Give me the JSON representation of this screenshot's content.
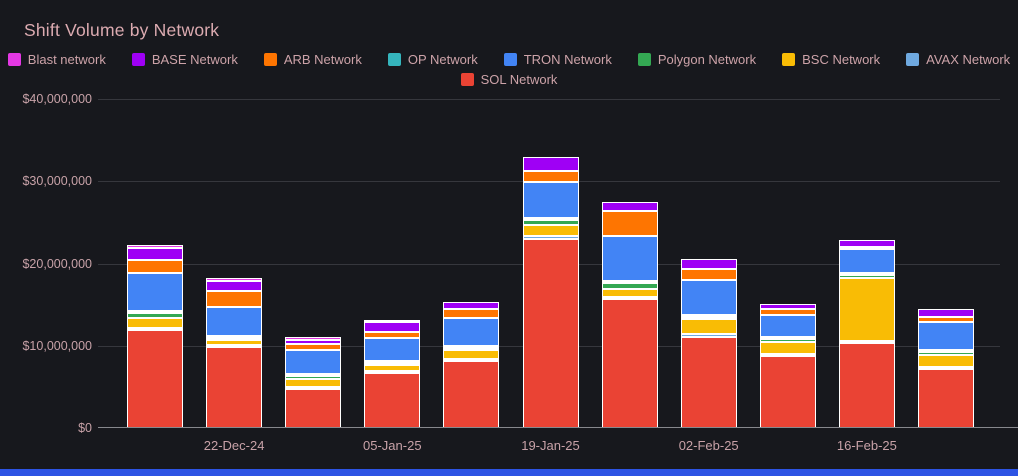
{
  "title": "Shift Volume by Network",
  "colors": {
    "background": "#17181d",
    "title_text": "#dcabb1",
    "legend_text": "#cda3a9",
    "axis_text": "#c8a2a8",
    "grid_line": "#36373d",
    "axis_line": "#87888d",
    "segment_border": "#ffffff",
    "bottom_strip": "#2d54e4"
  },
  "legend": {
    "rows": [
      [
        {
          "label": "Blast network",
          "color": "#e438e4"
        },
        {
          "label": "BASE Network",
          "color": "#9f00f5"
        },
        {
          "label": "ARB Network",
          "color": "#fe7501"
        },
        {
          "label": "OP Network",
          "color": "#35b5bd"
        },
        {
          "label": "TRON Network",
          "color": "#4284f5"
        },
        {
          "label": "Polygon Network",
          "color": "#34a853"
        },
        {
          "label": "BSC Network",
          "color": "#f9bc05"
        },
        {
          "label": "AVAX Network",
          "color": "#6fa9e0"
        }
      ],
      [
        {
          "label": "SOL Network",
          "color": "#ea4334"
        }
      ]
    ]
  },
  "chart_data": {
    "type": "bar",
    "stacked": true,
    "title": "Shift Volume by Network",
    "xlabel": "",
    "ylabel": "",
    "ylim": [
      0,
      40000000
    ],
    "grid": true,
    "legend_position": "top-center",
    "bar_count": 11,
    "y_ticks": [
      {
        "label": "$40,000,000",
        "value": 40000000
      },
      {
        "label": "$30,000,000",
        "value": 30000000
      },
      {
        "label": "$20,000,000",
        "value": 20000000
      },
      {
        "label": "$10,000,000",
        "value": 10000000
      },
      {
        "label": "$0",
        "value": 0
      }
    ],
    "x_tick_labels": [
      {
        "label": "22-Dec-24",
        "bar_index": 1
      },
      {
        "label": "05-Jan-25",
        "bar_index": 3
      },
      {
        "label": "19-Jan-25",
        "bar_index": 5
      },
      {
        "label": "02-Feb-25",
        "bar_index": 7
      },
      {
        "label": "16-Feb-25",
        "bar_index": 9
      }
    ],
    "series_bottom_to_top": [
      {
        "name": "SOL Network",
        "color": "#ea4334",
        "values": [
          11900000,
          9800000,
          4800000,
          6700000,
          8100000,
          23000000,
          15700000,
          11100000,
          8800000,
          10300000,
          7200000
        ]
      },
      {
        "name": "AVAX Network",
        "color": "#6fa9e0",
        "values": [
          100000,
          150000,
          50000,
          50000,
          150000,
          300000,
          200000,
          350000,
          100000,
          250000,
          50000
        ]
      },
      {
        "name": "BSC Network",
        "color": "#f9bc05",
        "values": [
          1200000,
          600000,
          900000,
          700000,
          1150000,
          1400000,
          1000000,
          1750000,
          1450000,
          7700000,
          1450000
        ]
      },
      {
        "name": "Polygon Network",
        "color": "#34a853",
        "values": [
          650000,
          350000,
          400000,
          300000,
          200000,
          650000,
          700000,
          300000,
          300000,
          300000,
          350000
        ]
      },
      {
        "name": "OP Network",
        "color": "#35b5bd",
        "values": [
          100000,
          100000,
          50000,
          50000,
          50000,
          50000,
          50000,
          50000,
          50000,
          100000,
          50000
        ]
      },
      {
        "name": "TRON Network",
        "color": "#4284f5",
        "values": [
          4600000,
          3500000,
          2900000,
          2800000,
          3350000,
          4350000,
          5500000,
          4300000,
          2700000,
          3000000,
          3350000
        ]
      },
      {
        "name": "ARB Network",
        "color": "#fe7501",
        "values": [
          1550000,
          1900000,
          750000,
          700000,
          1100000,
          1300000,
          3050000,
          1300000,
          750000,
          250000,
          650000
        ]
      },
      {
        "name": "BASE Network",
        "color": "#9f00f5",
        "values": [
          1500000,
          1250000,
          500000,
          1200000,
          950000,
          1700000,
          1000000,
          1250000,
          650000,
          800000,
          950000
        ]
      },
      {
        "name": "Blast network",
        "color": "#e438e4",
        "values": [
          400000,
          300000,
          350000,
          300000,
          0,
          0,
          0,
          0,
          0,
          0,
          0
        ]
      }
    ]
  }
}
